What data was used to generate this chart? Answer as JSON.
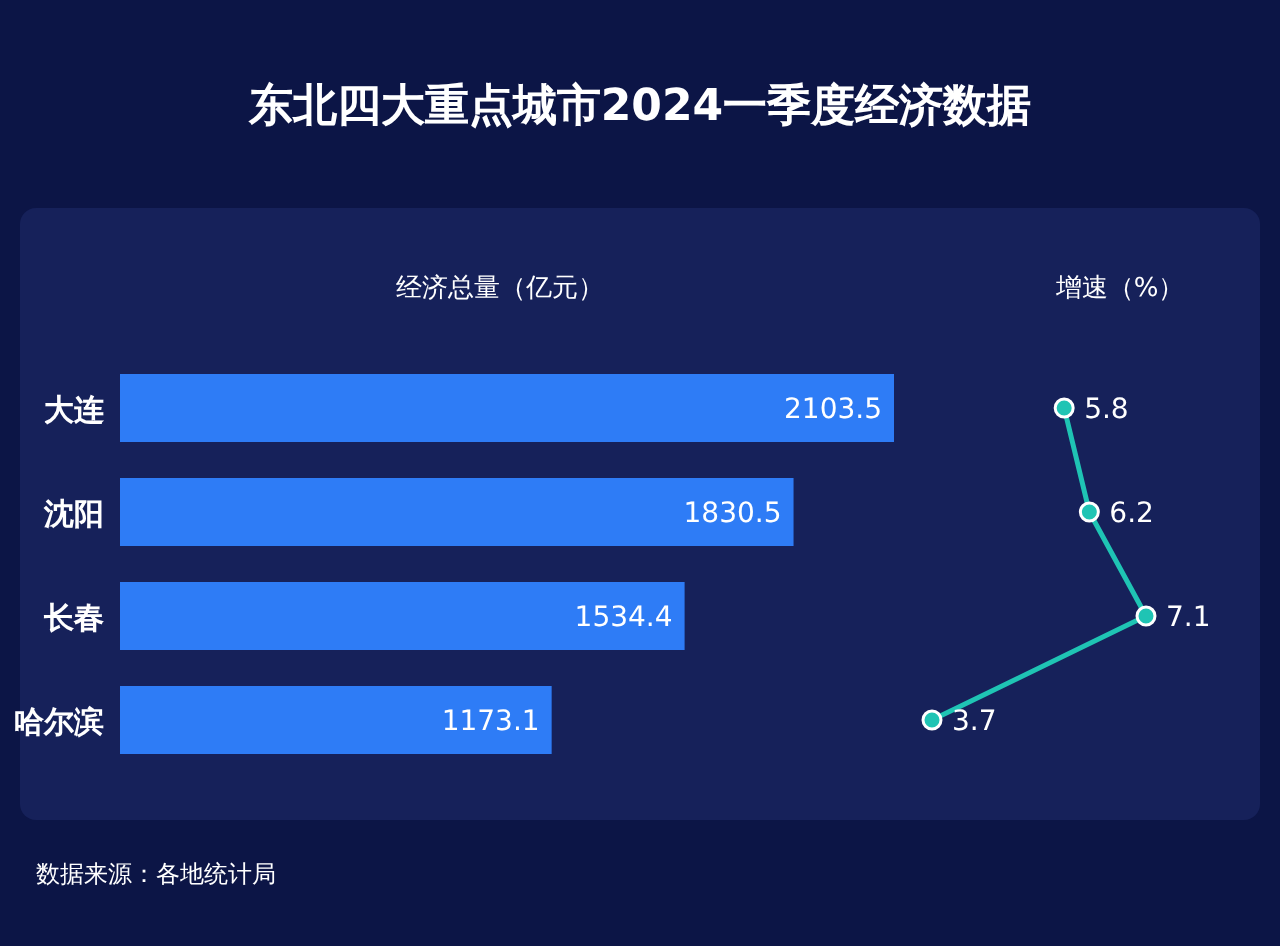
{
  "chart_data": [
    {
      "type": "bar",
      "orientation": "horizontal",
      "title": "东北四大重点城市2024一季度经济数据",
      "xlabel": "经济总量（亿元）",
      "categories": [
        "大连",
        "沈阳",
        "长春",
        "哈尔滨"
      ],
      "values": [
        2103.5,
        1830.5,
        1534.4,
        1173.1
      ],
      "color": "#2e7cf6",
      "data_labels": true,
      "tick_labels": "y",
      "annotations": [
        "数据来源：各地统计局"
      ]
    },
    {
      "type": "line",
      "orientation": "horizontal",
      "xlabel": "增速（%）",
      "values": [
        5.8,
        6.2,
        7.1,
        3.7
      ],
      "color": "#1fc4b4",
      "data_labels": true,
      "tick_labels": false,
      "marker": "circle",
      "line_style": "solid"
    }
  ]
}
